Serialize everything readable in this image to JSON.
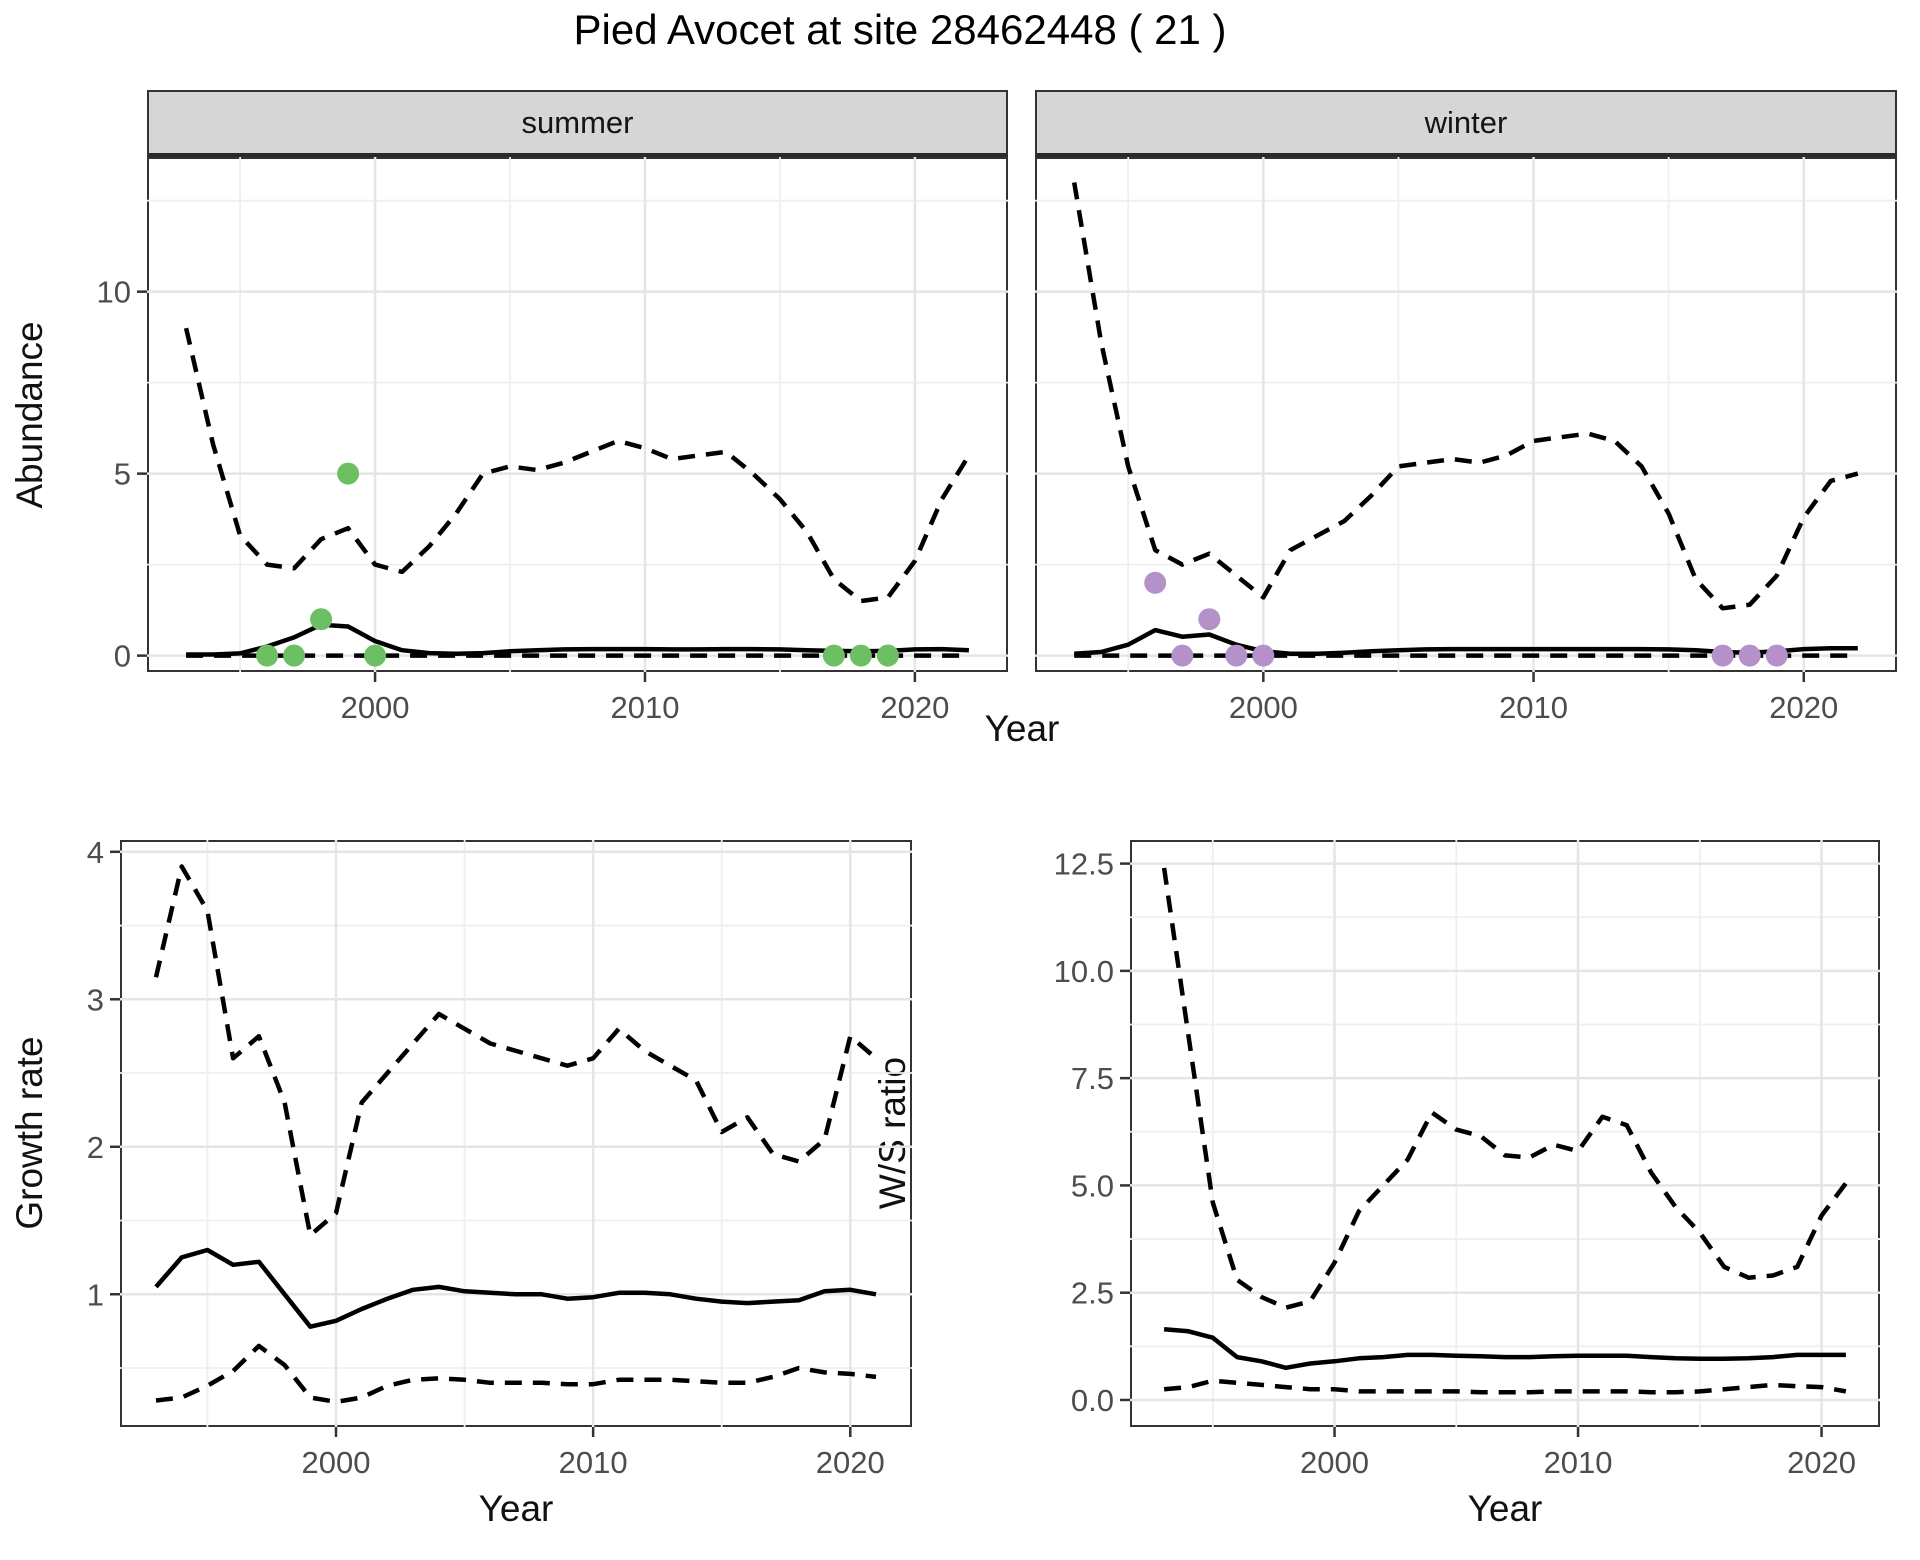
{
  "title": "Pied Avocet at site 28462448 ( 21 )",
  "colors": {
    "summer_points": "#6cbf62",
    "winter_points": "#b491c8",
    "line": "#000000",
    "strip_bg": "#d6d6d6",
    "panel_border": "#333333",
    "grid_major": "#e5e5e5",
    "grid_minor": "#efefef",
    "tick_text": "#4d4d4d"
  },
  "chart_data": [
    {
      "id": "summer",
      "type": "line",
      "facet_label": "summer",
      "xlabel": "Year",
      "ylabel": "Abundance",
      "xlim": [
        1991.55,
        2023.45
      ],
      "ylim": [
        -0.45,
        13.7
      ],
      "xticks": [
        2000,
        2010,
        2020
      ],
      "xtick_labels": [
        "2000",
        "2010",
        "2020"
      ],
      "xminor": [
        1995,
        2005,
        2015
      ],
      "yticks": [
        0,
        5,
        10
      ],
      "ytick_labels": [
        "0",
        "5",
        "10"
      ],
      "yminor": [
        2.5,
        7.5,
        12.5
      ],
      "show_yticks": true,
      "years": [
        1993,
        1994,
        1995,
        1996,
        1997,
        1998,
        1999,
        2000,
        2001,
        2002,
        2003,
        2004,
        2005,
        2006,
        2007,
        2008,
        2009,
        2010,
        2011,
        2012,
        2013,
        2014,
        2015,
        2016,
        2017,
        2018,
        2019,
        2020,
        2021,
        2022
      ],
      "series": [
        {
          "name": "upper_ci",
          "dash": true,
          "values": [
            9.0,
            5.8,
            3.3,
            2.5,
            2.4,
            3.2,
            3.5,
            2.5,
            2.3,
            3.0,
            3.9,
            5.0,
            5.2,
            5.1,
            5.3,
            5.6,
            5.9,
            5.7,
            5.4,
            5.5,
            5.6,
            5.0,
            4.3,
            3.4,
            2.1,
            1.5,
            1.6,
            2.6,
            4.3,
            5.5
          ]
        },
        {
          "name": "lower_ci",
          "dash": true,
          "values": [
            0,
            0,
            0,
            0,
            0,
            0,
            0,
            0,
            0,
            0,
            0,
            0,
            0,
            0,
            0,
            0,
            0,
            0,
            0,
            0,
            0,
            0,
            0,
            0,
            0,
            0,
            0,
            0,
            0,
            0
          ]
        },
        {
          "name": "mean",
          "dash": false,
          "values": [
            0.03,
            0.03,
            0.06,
            0.25,
            0.5,
            0.85,
            0.8,
            0.4,
            0.15,
            0.07,
            0.05,
            0.07,
            0.12,
            0.15,
            0.17,
            0.18,
            0.18,
            0.18,
            0.17,
            0.17,
            0.18,
            0.18,
            0.17,
            0.15,
            0.13,
            0.12,
            0.13,
            0.17,
            0.18,
            0.15
          ]
        }
      ],
      "points": {
        "name": "observed_counts",
        "color_key": "summer_points",
        "x": [
          1996,
          1997,
          1998,
          1999,
          2000,
          2017,
          2018,
          2019
        ],
        "y": [
          0,
          0,
          1,
          5,
          0,
          0,
          0,
          0
        ]
      }
    },
    {
      "id": "winter",
      "type": "line",
      "facet_label": "winter",
      "xlabel": "Year",
      "ylabel": "Abundance",
      "xlim": [
        1991.55,
        2023.45
      ],
      "ylim": [
        -0.45,
        13.7
      ],
      "xticks": [
        2000,
        2010,
        2020
      ],
      "xtick_labels": [
        "2000",
        "2010",
        "2020"
      ],
      "xminor": [
        1995,
        2005,
        2015
      ],
      "yticks": [
        0,
        5,
        10
      ],
      "ytick_labels": [
        "0",
        "5",
        "10"
      ],
      "yminor": [
        2.5,
        7.5,
        12.5
      ],
      "show_yticks": false,
      "years": [
        1993,
        1994,
        1995,
        1996,
        1997,
        1998,
        1999,
        2000,
        2001,
        2002,
        2003,
        2004,
        2005,
        2006,
        2007,
        2008,
        2009,
        2010,
        2011,
        2012,
        2013,
        2014,
        2015,
        2016,
        2017,
        2018,
        2019,
        2020,
        2021,
        2022
      ],
      "series": [
        {
          "name": "upper_ci",
          "dash": true,
          "values": [
            13.0,
            8.6,
            5.2,
            2.9,
            2.5,
            2.8,
            2.2,
            1.6,
            2.9,
            3.3,
            3.7,
            4.4,
            5.2,
            5.3,
            5.4,
            5.3,
            5.5,
            5.9,
            6.0,
            6.1,
            5.9,
            5.2,
            3.9,
            2.1,
            1.3,
            1.4,
            2.2,
            3.8,
            4.8,
            5.0
          ]
        },
        {
          "name": "lower_ci",
          "dash": true,
          "values": [
            0,
            0,
            0,
            0,
            0,
            0,
            0,
            0,
            0,
            0,
            0,
            0,
            0,
            0,
            0,
            0,
            0,
            0,
            0,
            0,
            0,
            0,
            0,
            0,
            0,
            0,
            0,
            0,
            0,
            0
          ]
        },
        {
          "name": "mean",
          "dash": false,
          "values": [
            0.05,
            0.1,
            0.3,
            0.7,
            0.52,
            0.58,
            0.3,
            0.12,
            0.05,
            0.05,
            0.08,
            0.12,
            0.15,
            0.17,
            0.18,
            0.18,
            0.18,
            0.18,
            0.18,
            0.18,
            0.18,
            0.18,
            0.17,
            0.15,
            0.1,
            0.08,
            0.12,
            0.18,
            0.2,
            0.2
          ]
        }
      ],
      "points": {
        "name": "observed_counts",
        "color_key": "winter_points",
        "x": [
          1996,
          1997,
          1998,
          1999,
          2000,
          2017,
          2018,
          2019
        ],
        "y": [
          2,
          0,
          1,
          0,
          0,
          0,
          0,
          0
        ]
      }
    },
    {
      "id": "growth",
      "type": "line",
      "xlabel": "Year",
      "ylabel": "Growth rate",
      "xlim": [
        1991.6,
        2022.4
      ],
      "ylim": [
        0.1,
        4.08
      ],
      "xticks": [
        2000,
        2010,
        2020
      ],
      "xtick_labels": [
        "2000",
        "2010",
        "2020"
      ],
      "xminor": [
        1995,
        2005,
        2015
      ],
      "yticks": [
        1,
        2,
        3,
        4
      ],
      "ytick_labels": [
        "1",
        "2",
        "3",
        "4"
      ],
      "yminor": [
        0.5,
        1.5,
        2.5,
        3.5
      ],
      "show_yticks": true,
      "years": [
        1993,
        1994,
        1995,
        1996,
        1997,
        1998,
        1999,
        2000,
        2001,
        2002,
        2003,
        2004,
        2005,
        2006,
        2007,
        2008,
        2009,
        2010,
        2011,
        2012,
        2013,
        2014,
        2015,
        2016,
        2017,
        2018,
        2019,
        2020,
        2021
      ],
      "series": [
        {
          "name": "upper_ci",
          "dash": true,
          "values": [
            3.15,
            3.9,
            3.6,
            2.6,
            2.75,
            2.3,
            1.4,
            1.55,
            2.3,
            2.5,
            2.7,
            2.9,
            2.8,
            2.7,
            2.65,
            2.6,
            2.55,
            2.6,
            2.8,
            2.65,
            2.55,
            2.45,
            2.1,
            2.2,
            1.95,
            1.9,
            2.05,
            2.75,
            2.6
          ]
        },
        {
          "name": "lower_ci",
          "dash": true,
          "values": [
            0.28,
            0.3,
            0.38,
            0.48,
            0.65,
            0.52,
            0.3,
            0.27,
            0.3,
            0.38,
            0.42,
            0.43,
            0.42,
            0.4,
            0.4,
            0.4,
            0.39,
            0.39,
            0.42,
            0.42,
            0.42,
            0.41,
            0.4,
            0.4,
            0.44,
            0.5,
            0.47,
            0.46,
            0.44
          ]
        },
        {
          "name": "mean",
          "dash": false,
          "values": [
            1.05,
            1.25,
            1.3,
            1.2,
            1.22,
            1.0,
            0.78,
            0.82,
            0.9,
            0.97,
            1.03,
            1.05,
            1.02,
            1.01,
            1.0,
            1.0,
            0.97,
            0.98,
            1.01,
            1.01,
            1.0,
            0.97,
            0.95,
            0.94,
            0.95,
            0.96,
            1.02,
            1.03,
            1.0
          ]
        }
      ]
    },
    {
      "id": "ws",
      "type": "line",
      "xlabel": "Year",
      "ylabel": "W/S ratio",
      "xlim": [
        1991.6,
        2022.4
      ],
      "ylim": [
        -0.63,
        13.05
      ],
      "xticks": [
        2000,
        2010,
        2020
      ],
      "xtick_labels": [
        "2000",
        "2010",
        "2020"
      ],
      "xminor": [
        1995,
        2005,
        2015
      ],
      "yticks": [
        0,
        2.5,
        5,
        7.5,
        10,
        12.5
      ],
      "ytick_labels": [
        "0.0",
        "2.5",
        "5.0",
        "7.5",
        "10.0",
        "12.5"
      ],
      "yminor": [
        1.25,
        3.75,
        6.25,
        8.75,
        11.25
      ],
      "show_yticks": true,
      "years": [
        1993,
        1994,
        1995,
        1996,
        1997,
        1998,
        1999,
        2000,
        2001,
        2002,
        2003,
        2004,
        2005,
        2006,
        2007,
        2008,
        2009,
        2010,
        2011,
        2012,
        2013,
        2014,
        2015,
        2016,
        2017,
        2018,
        2019,
        2020,
        2021
      ],
      "series": [
        {
          "name": "upper_ci",
          "dash": true,
          "values": [
            12.4,
            8.5,
            4.6,
            2.8,
            2.4,
            2.15,
            2.3,
            3.2,
            4.4,
            5.0,
            5.6,
            6.7,
            6.3,
            6.15,
            5.7,
            5.65,
            5.95,
            5.8,
            6.6,
            6.4,
            5.3,
            4.5,
            3.9,
            3.1,
            2.85,
            2.9,
            3.1,
            4.3,
            5.05
          ]
        },
        {
          "name": "lower_ci",
          "dash": true,
          "values": [
            0.25,
            0.3,
            0.45,
            0.4,
            0.35,
            0.3,
            0.25,
            0.25,
            0.2,
            0.2,
            0.2,
            0.2,
            0.2,
            0.18,
            0.18,
            0.18,
            0.2,
            0.2,
            0.2,
            0.2,
            0.18,
            0.18,
            0.2,
            0.25,
            0.3,
            0.35,
            0.32,
            0.3,
            0.2
          ]
        },
        {
          "name": "mean",
          "dash": false,
          "values": [
            1.65,
            1.6,
            1.45,
            1.0,
            0.9,
            0.75,
            0.85,
            0.9,
            0.97,
            1.0,
            1.05,
            1.05,
            1.03,
            1.02,
            1.0,
            1.0,
            1.02,
            1.03,
            1.03,
            1.03,
            1.0,
            0.97,
            0.96,
            0.96,
            0.97,
            1.0,
            1.05,
            1.05,
            1.05
          ]
        }
      ]
    }
  ]
}
